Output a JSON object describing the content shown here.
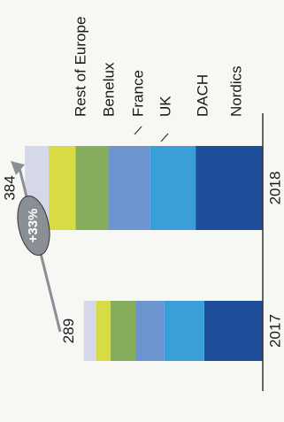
{
  "chart_data": {
    "type": "bar",
    "stacked": true,
    "orientation": "horizontal (figure rotated 90°)",
    "categories": [
      "2017",
      "2018"
    ],
    "totals": [
      289,
      384
    ],
    "series": [
      {
        "name": "Nordics",
        "color": "#1f4f9a",
        "values": [
          94.5,
          108.5
        ]
      },
      {
        "name": "DACH",
        "color": "#3a9fd6",
        "values": [
          65,
          74
        ]
      },
      {
        "name": "UK",
        "color": "#6c94cf",
        "values": [
          45.5,
          67
        ]
      },
      {
        "name": "France",
        "color": "#86ad5b",
        "values": [
          41,
          53
        ]
      },
      {
        "name": "Benelux",
        "color": "#d7dc45",
        "values": [
          23.5,
          43.5
        ]
      },
      {
        "name": "Rest of Europe",
        "color": "#d4d8e8",
        "values": [
          19.5,
          38
        ]
      }
    ],
    "annotation": {
      "text": "+33%",
      "arrow": "2017 to 2018"
    },
    "title": "",
    "xlabel": "",
    "ylabel": "",
    "legend": "right, rotated",
    "grid": false,
    "colors": {
      "axis": "#333333",
      "badge_fill": "#8a8f96",
      "badge_text": "#ffffff"
    }
  }
}
